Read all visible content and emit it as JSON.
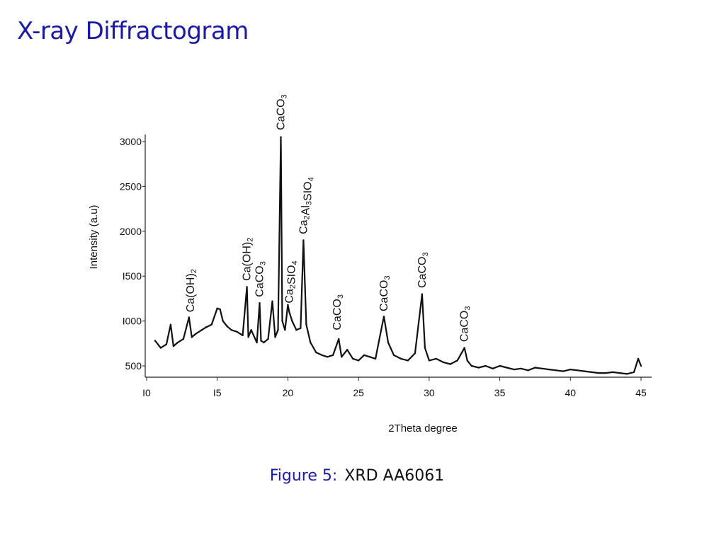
{
  "slide": {
    "title": "X-ray Diffractogram"
  },
  "caption": {
    "label": "Figure 5:",
    "text": "XRD AA6061"
  },
  "chart_data": {
    "type": "line",
    "title": "",
    "xlabel": "2Theta degree",
    "ylabel": "Intensity (a.u)",
    "xlim": [
      10,
      45
    ],
    "ylim": [
      400,
      3150
    ],
    "xticks": [
      10,
      15,
      20,
      25,
      30,
      35,
      40,
      45
    ],
    "xtick_labels": [
      "I0",
      "I5",
      "20",
      "25",
      "30",
      "35",
      "40",
      "45"
    ],
    "yticks": [
      500,
      1000,
      1500,
      2000,
      2500,
      3000
    ],
    "ytick_labels": [
      "500",
      "I000",
      "I500",
      "2000",
      "2500",
      "3000"
    ],
    "grid": false,
    "series": [
      {
        "x": [
          10.6,
          11.0,
          11.4,
          11.7,
          11.9,
          12.2,
          12.6,
          13.0,
          13.2,
          13.5,
          13.9,
          14.2,
          14.6,
          15.0,
          15.2,
          15.4,
          15.7,
          16.0,
          16.4,
          16.8,
          17.1,
          17.2,
          17.4,
          17.8,
          18.0,
          18.1,
          18.3,
          18.6,
          18.9,
          19.1,
          19.3,
          19.5,
          19.6,
          19.8,
          20.0,
          20.1,
          20.3,
          20.6,
          20.9,
          21.1,
          21.3,
          21.6,
          22.0,
          22.4,
          22.8,
          23.2,
          23.6,
          23.8,
          24.2,
          24.6,
          25.0,
          25.4,
          25.8,
          26.2,
          26.6,
          26.8,
          27.1,
          27.5,
          28.0,
          28.5,
          29.0,
          29.5,
          29.7,
          30.0,
          30.5,
          31.0,
          31.5,
          32.0,
          32.5,
          32.7,
          33.0,
          33.5,
          34.0,
          34.5,
          35.0,
          35.5,
          36.0,
          36.5,
          37.0,
          37.5,
          38.0,
          38.5,
          39.0,
          39.5,
          40.0,
          40.5,
          41.0,
          41.5,
          42.0,
          42.5,
          43.0,
          43.5,
          44.0,
          44.5,
          44.8,
          45.0
        ],
        "y": [
          780,
          700,
          740,
          960,
          720,
          760,
          800,
          1040,
          820,
          860,
          900,
          930,
          960,
          1140,
          1130,
          1000,
          940,
          900,
          880,
          840,
          1380,
          820,
          900,
          760,
          1200,
          780,
          760,
          800,
          1220,
          820,
          900,
          3050,
          1000,
          900,
          1180,
          1100,
          1000,
          900,
          920,
          1900,
          960,
          760,
          650,
          620,
          600,
          620,
          800,
          600,
          680,
          580,
          560,
          620,
          600,
          580,
          900,
          1050,
          760,
          620,
          580,
          560,
          640,
          1300,
          700,
          560,
          580,
          540,
          520,
          560,
          700,
          560,
          500,
          480,
          500,
          470,
          500,
          480,
          460,
          470,
          450,
          480,
          470,
          460,
          450,
          440,
          460,
          450,
          440,
          430,
          420,
          420,
          430,
          420,
          410,
          430,
          580,
          500
        ]
      }
    ],
    "annotations": [
      {
        "label": "Ca(OH)",
        "sub": "2",
        "x": 13.1,
        "y": 1050
      },
      {
        "label": "Ca(OH)",
        "sub": "2",
        "x": 17.1,
        "y": 1400
      },
      {
        "label": "CaCO",
        "sub": "3",
        "x": 18.0,
        "y": 1220
      },
      {
        "label": "CaCO",
        "sub": "3",
        "x": 19.5,
        "y": 3080
      },
      {
        "label": "Ca",
        "sub": "2",
        "label2": "SIO",
        "sub2": "4",
        "x": 20.1,
        "y": 1150
      },
      {
        "label": "Ca",
        "sub": "2",
        "label2": "Al",
        "sub2": "3",
        "label3": "SIO",
        "sub3": "4",
        "x": 21.1,
        "y": 1920
      },
      {
        "label": "CaCO",
        "sub": "3",
        "x": 23.5,
        "y": 850
      },
      {
        "label": "CaCO",
        "sub": "3",
        "x": 26.8,
        "y": 1060
      },
      {
        "label": "CaCO",
        "sub": "3",
        "x": 29.5,
        "y": 1320
      },
      {
        "label": "CaCO",
        "sub": "3",
        "x": 32.5,
        "y": 720
      }
    ]
  }
}
